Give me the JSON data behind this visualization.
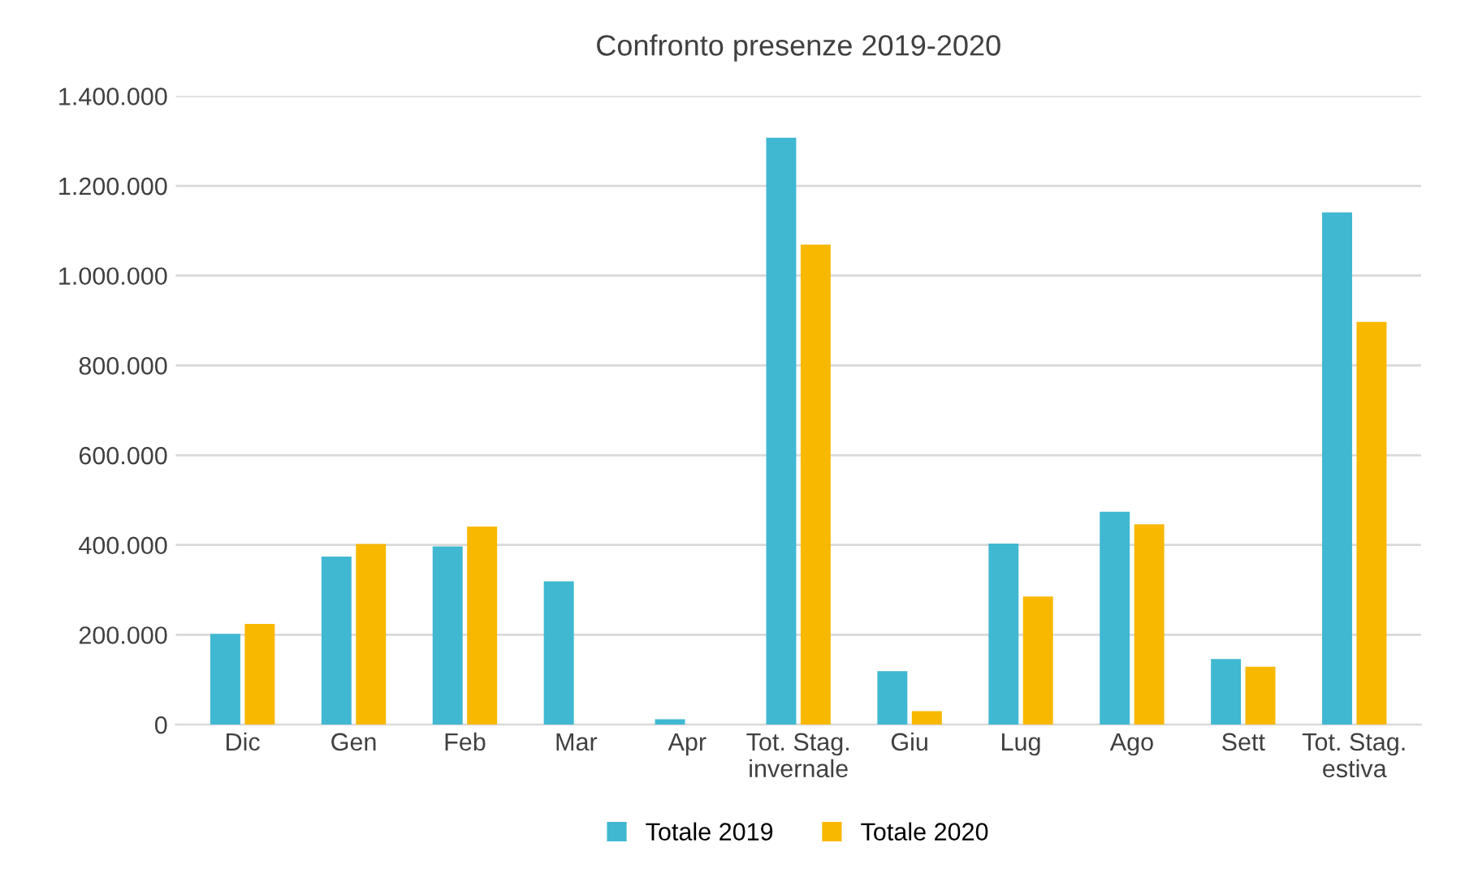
{
  "chart_data": {
    "type": "bar",
    "title": "Confronto presenze 2019-2020",
    "categories": [
      "Dic",
      "Gen",
      "Feb",
      "Mar",
      "Apr",
      "Tot. Stag.\ninvernale",
      "Giu",
      "Lug",
      "Ago",
      "Sett",
      "Tot. Stag.\nestiva"
    ],
    "series": [
      {
        "name": "Totale 2019",
        "color": "#40b8d2",
        "values": [
          202000,
          374000,
          397000,
          319000,
          12000,
          1307000,
          119000,
          403000,
          474000,
          146000,
          1141000
        ]
      },
      {
        "name": "Totale 2020",
        "color": "#f9b800",
        "values": [
          224000,
          402000,
          441000,
          0,
          0,
          1069000,
          30000,
          285000,
          446000,
          129000,
          897000
        ]
      }
    ],
    "ylim": [
      0,
      1400000
    ],
    "yticks": [
      {
        "value": 0,
        "label": "0"
      },
      {
        "value": 200000,
        "label": "200.000"
      },
      {
        "value": 400000,
        "label": "400.000"
      },
      {
        "value": 600000,
        "label": "600.000"
      },
      {
        "value": 800000,
        "label": "800.000"
      },
      {
        "value": 1000000,
        "label": "1.000.000"
      },
      {
        "value": 1200000,
        "label": "1.200.000"
      },
      {
        "value": 1400000,
        "label": "1.400.000"
      }
    ],
    "grid": "y",
    "legend": "bottom"
  }
}
